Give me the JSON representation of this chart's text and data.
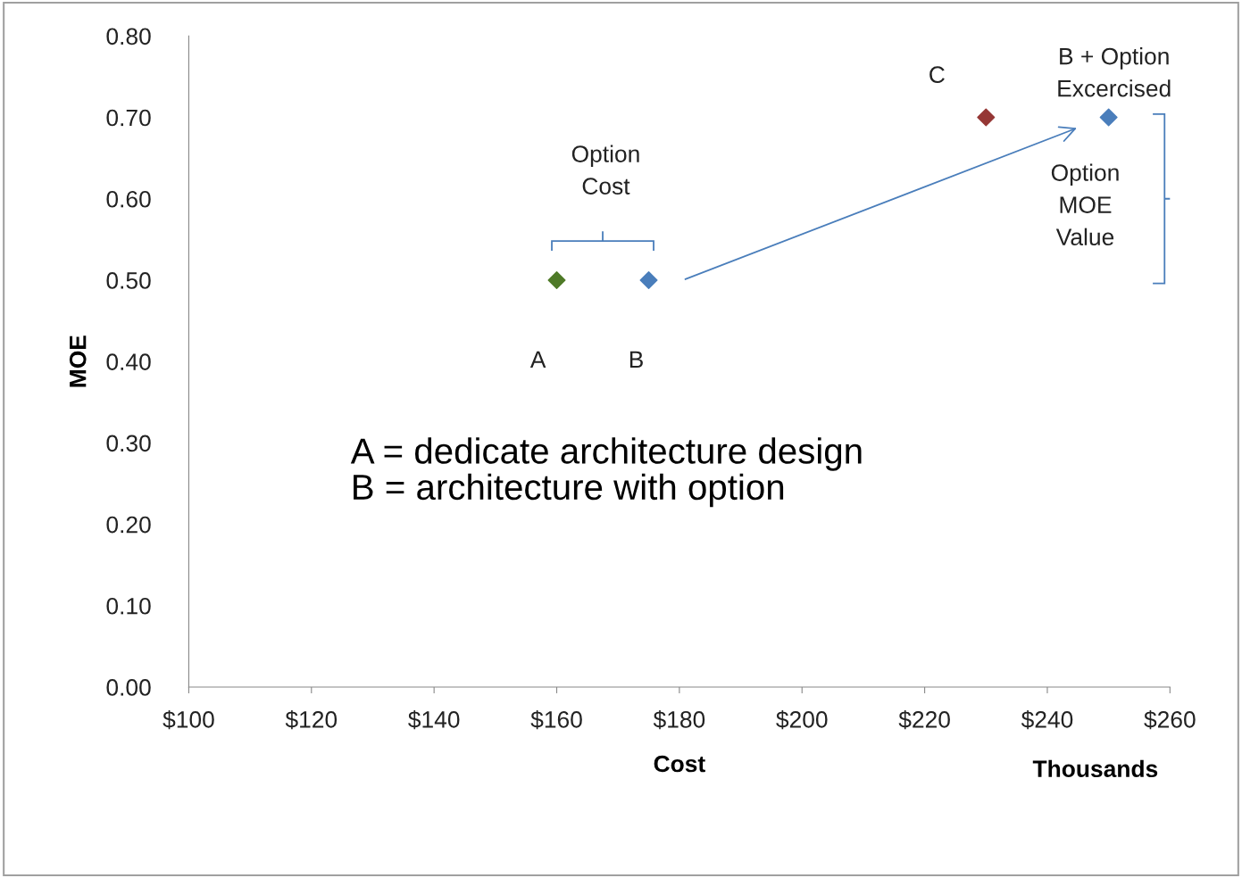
{
  "chart_data": {
    "type": "scatter",
    "xlabel": "Cost",
    "ylabel": "MOE",
    "xlim": [
      100,
      260
    ],
    "xticks": [
      {
        "value": 100,
        "label": "$100"
      },
      {
        "value": 120,
        "label": "$120"
      },
      {
        "value": 140,
        "label": "$140"
      },
      {
        "value": 160,
        "label": "$160"
      },
      {
        "value": 180,
        "label": "$180"
      },
      {
        "value": 200,
        "label": "$200"
      },
      {
        "value": 220,
        "label": "$220"
      },
      {
        "value": 240,
        "label": "$240"
      },
      {
        "value": 260,
        "label": "$260"
      }
    ],
    "ylim": [
      0,
      0.8
    ],
    "yticks": [
      {
        "value": 0,
        "label": "0.00"
      },
      {
        "value": 0.1,
        "label": "0.10"
      },
      {
        "value": 0.2,
        "label": "0.20"
      },
      {
        "value": 0.3,
        "label": "0.30"
      },
      {
        "value": 0.4,
        "label": "0.40"
      },
      {
        "value": 0.5,
        "label": "0.50"
      },
      {
        "value": 0.6,
        "label": "0.60"
      },
      {
        "value": 0.7,
        "label": "0.70"
      },
      {
        "value": 0.8,
        "label": "0.80"
      }
    ],
    "marker": "diamond",
    "grid": false,
    "legend": false,
    "series": [
      {
        "x": [
          160,
          175,
          230,
          250
        ],
        "values": [
          0.5,
          0.5,
          0.7,
          0.7
        ],
        "colors": [
          "#4f7a28",
          "#4a7ebb",
          "#953735",
          "#4a7ebb"
        ]
      }
    ],
    "annotations": [
      "A",
      "B",
      "C",
      "B + Option\nExcercised",
      "Option\nCost",
      "Option\nMOE\nValue",
      "A = dedicate architecture design\nB = architecture with option",
      "Thousands"
    ]
  }
}
